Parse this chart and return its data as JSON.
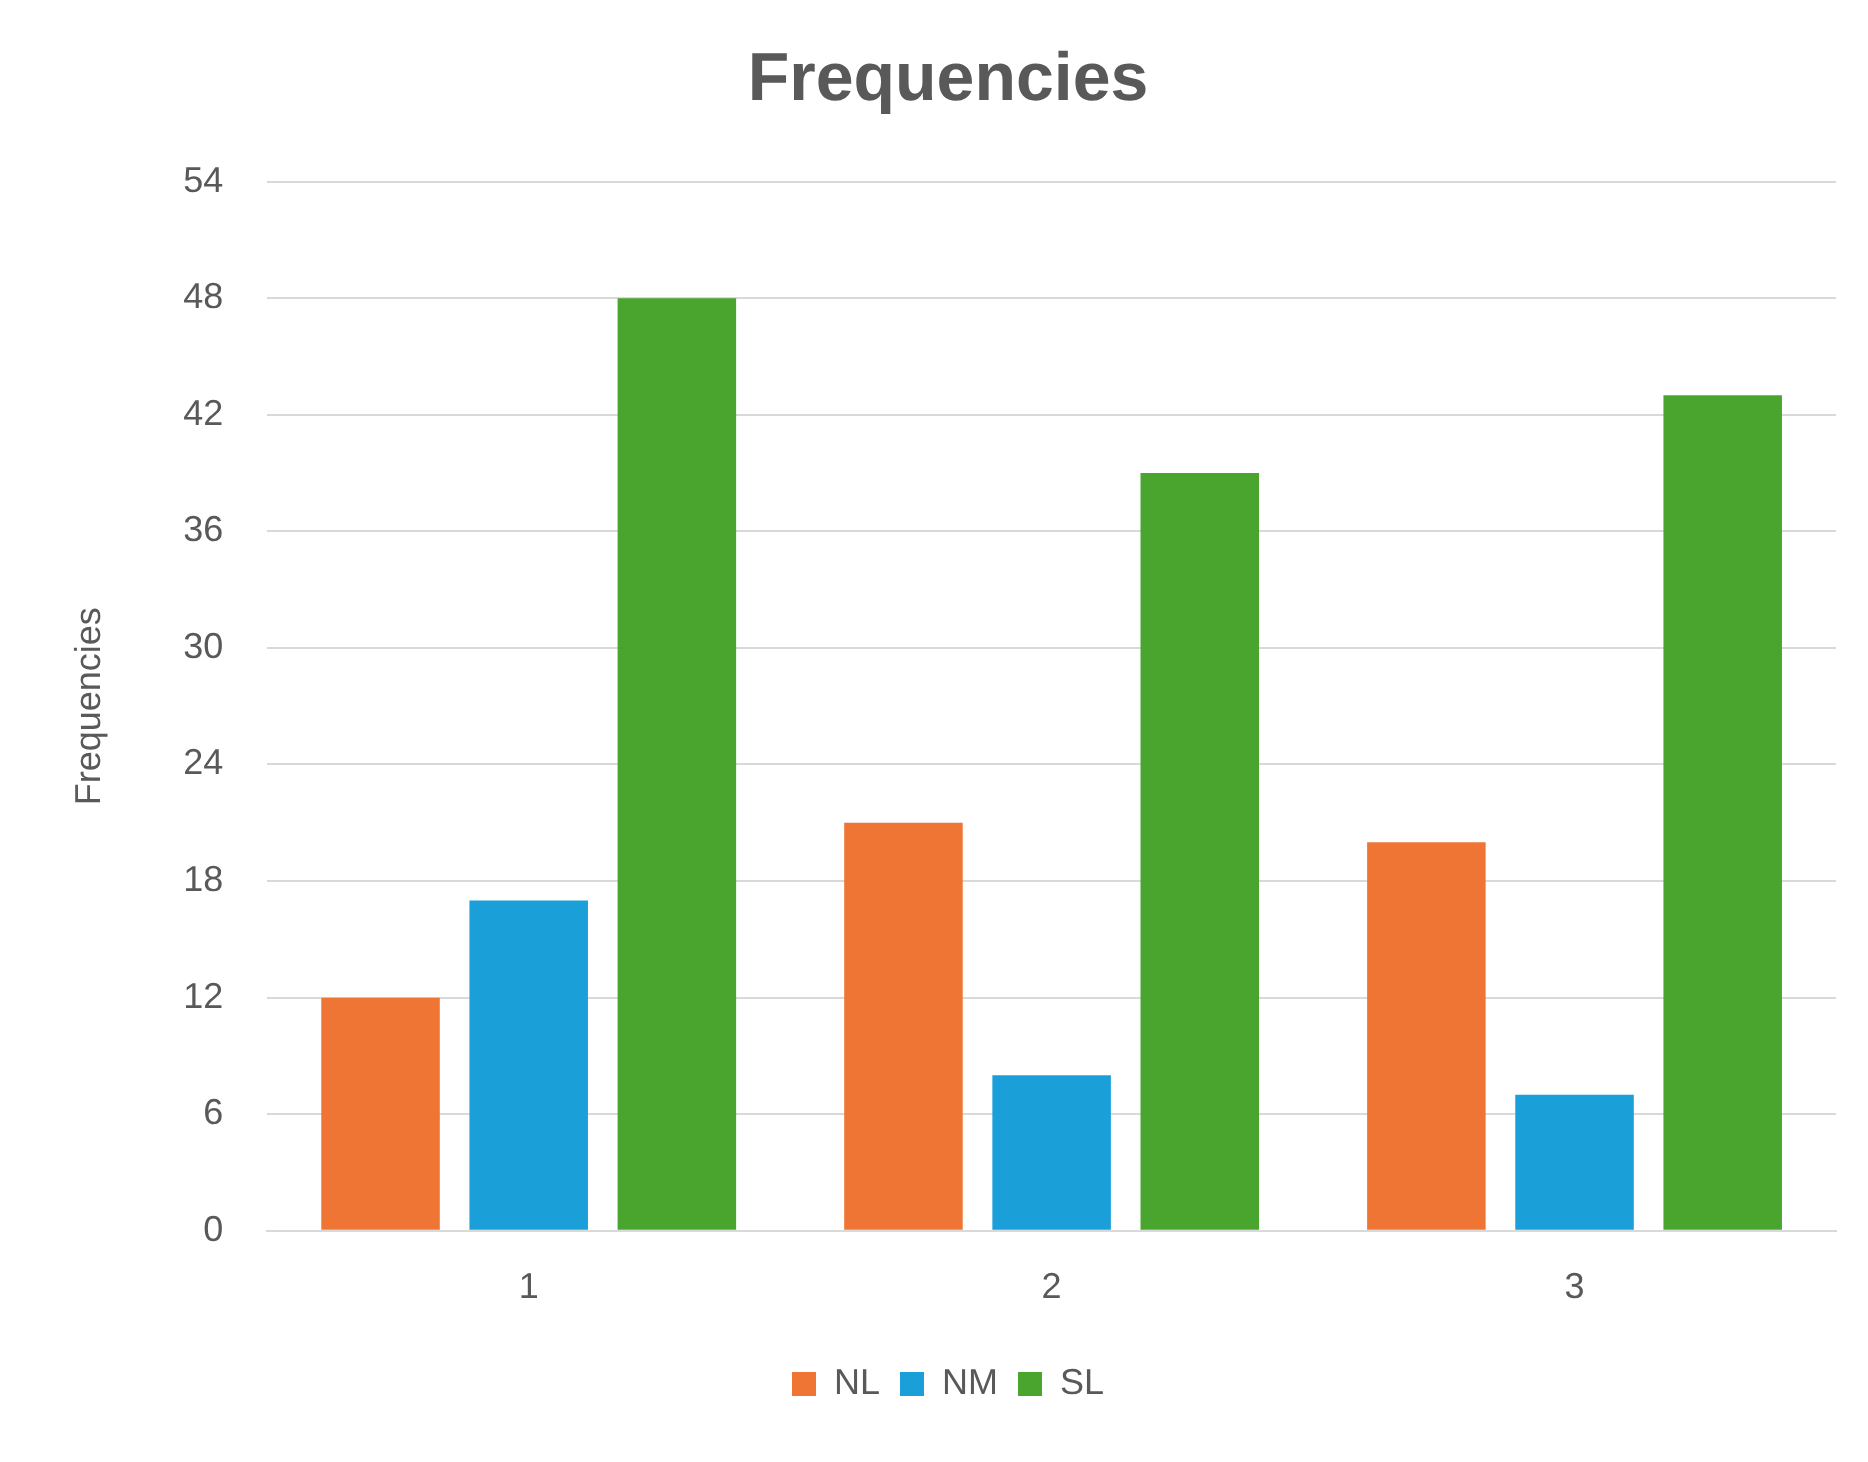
{
  "chart_data": {
    "type": "bar",
    "title": "Frequencies",
    "ylabel": "Frequencies",
    "categories": [
      "1",
      "2",
      "3"
    ],
    "series": [
      {
        "name": "NL",
        "color": "#ee7533",
        "values": [
          12,
          21,
          20
        ]
      },
      {
        "name": "NM",
        "color": "#1b9fd9",
        "values": [
          17,
          8,
          7
        ]
      },
      {
        "name": "SL",
        "color": "#4aa52e",
        "values": [
          48,
          39,
          43
        ]
      }
    ],
    "ylim": [
      0,
      54
    ],
    "yticks": [
      0,
      6,
      12,
      18,
      24,
      30,
      36,
      42,
      48,
      54
    ],
    "grid": "y",
    "legend": "bottom"
  }
}
